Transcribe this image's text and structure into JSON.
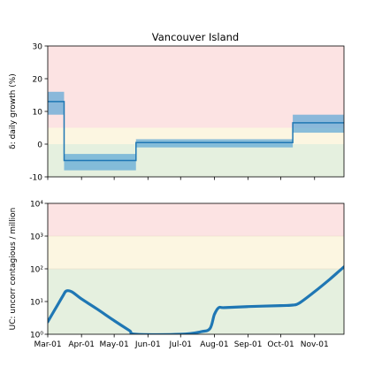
{
  "chart_data": [
    {
      "type": "line",
      "title": "Vancouver Island",
      "ylabel": "δ: daily growth (%)",
      "xlabel": "",
      "ylim": [
        -10,
        30
      ],
      "yticks": [
        -10,
        0,
        10,
        20,
        30
      ],
      "bands": [
        {
          "from": -10,
          "to": 0,
          "color": "#e5f0df"
        },
        {
          "from": 0,
          "to": 5,
          "color": "#fcf6e1"
        },
        {
          "from": 5,
          "to": 30,
          "color": "#fce3e3"
        }
      ],
      "series": [
        {
          "style": "step",
          "color": "#1f77b4",
          "steps": [
            {
              "start": "2020-03-01",
              "end": "2020-03-16",
              "value": 13,
              "low": 9,
              "high": 16
            },
            {
              "start": "2020-03-16",
              "end": "2020-05-21",
              "value": -5,
              "low": -8,
              "high": -3
            },
            {
              "start": "2020-05-21",
              "end": "2020-10-12",
              "value": 0.5,
              "low": -1,
              "high": 1.5
            },
            {
              "start": "2020-10-12",
              "end": "2020-11-28",
              "value": 6.5,
              "low": 3.5,
              "high": 9
            }
          ]
        }
      ]
    },
    {
      "type": "line",
      "title": "",
      "ylabel": "UC: uncorr contagious / million",
      "xlabel": "",
      "yscale": "log",
      "ylim": [
        1,
        10000
      ],
      "ytick_labels": [
        "10⁰",
        "10¹",
        "10²",
        "10³",
        "10⁴"
      ],
      "xtick_labels": [
        "Mar-01",
        "Apr-01",
        "May-01",
        "Jun-01",
        "Jul-01",
        "Aug-01",
        "Sep-01",
        "Oct-01",
        "Nov-01"
      ],
      "bands": [
        {
          "from": 1,
          "to": 100,
          "color": "#e5f0df"
        },
        {
          "from": 100,
          "to": 1000,
          "color": "#fcf6e1"
        },
        {
          "from": 1000,
          "to": 10000,
          "color": "#fce3e3"
        }
      ],
      "series": [
        {
          "color": "#1f77b4",
          "x": [
            "2020-03-01",
            "2020-03-08",
            "2020-03-15",
            "2020-03-18",
            "2020-03-23",
            "2020-04-01",
            "2020-04-15",
            "2020-05-01",
            "2020-05-15",
            "2020-05-21",
            "2020-07-01",
            "2020-07-20",
            "2020-07-28",
            "2020-08-01",
            "2020-08-05",
            "2020-08-10",
            "2020-09-01",
            "2020-10-01",
            "2020-10-12",
            "2020-10-18",
            "2020-11-01",
            "2020-11-15",
            "2020-11-28"
          ],
          "y": [
            2.4,
            6,
            15,
            21,
            20,
            12,
            6,
            2.6,
            1.3,
            1.0,
            1.0,
            1.2,
            1.5,
            4,
            6.5,
            6.5,
            7.0,
            7.5,
            7.8,
            9,
            20,
            48,
            115
          ]
        }
      ]
    }
  ]
}
